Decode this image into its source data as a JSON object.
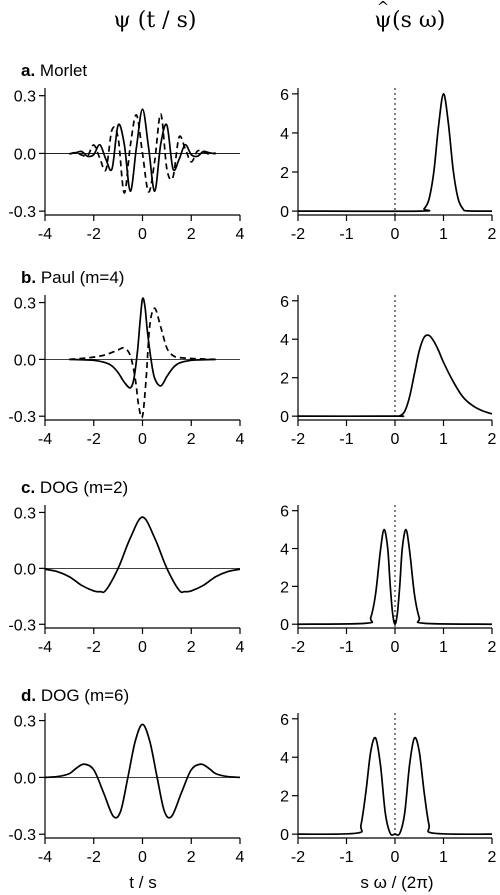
{
  "header": {
    "left": "ψ (t / s)",
    "right_symbol": "ψ",
    "right_hat": "^",
    "right_rest": " (s ω)"
  },
  "footer": {
    "left_xlabel": "t / s",
    "right_xlabel": "s ω / (2π)"
  },
  "chart_data": [
    {
      "type": "line",
      "panel": "a",
      "title_letter": "a.",
      "title_text": " Morlet",
      "xlim": [
        -4,
        4
      ],
      "ylim": [
        -0.32,
        0.34
      ],
      "xticks": [
        -4,
        -2,
        0,
        2,
        4
      ],
      "yticks": [
        -0.3,
        0.0,
        0.3
      ],
      "ytick_labels": [
        "-0.3",
        "0.0",
        "0.3"
      ],
      "zero_line": true,
      "series": [
        {
          "style": "solid",
          "x": [
            -3.0,
            -2.75,
            -2.5,
            -2.25,
            -2.0,
            -1.75,
            -1.5,
            -1.25,
            -1.0,
            -0.75,
            -0.5,
            -0.25,
            0.0,
            0.25,
            0.5,
            0.75,
            1.0,
            1.25,
            1.5,
            1.75,
            2.0,
            2.25,
            2.5,
            2.75,
            3.0
          ],
          "y": [
            -0.002,
            0.003,
            0.01,
            -0.015,
            -0.006,
            0.045,
            -0.031,
            -0.08,
            0.147,
            0.05,
            -0.196,
            0.03,
            0.23,
            0.03,
            -0.196,
            0.05,
            0.147,
            -0.08,
            -0.031,
            0.045,
            -0.006,
            -0.015,
            0.01,
            0.003,
            -0.002
          ]
        },
        {
          "style": "dashed",
          "x": [
            -3.0,
            -2.75,
            -2.5,
            -2.25,
            -2.0,
            -1.75,
            -1.5,
            -1.25,
            -1.0,
            -0.75,
            -0.5,
            -0.25,
            0.0,
            0.25,
            0.5,
            0.75,
            1.0,
            1.25,
            1.5,
            1.75,
            2.0,
            2.25,
            2.5,
            2.75,
            3.0
          ],
          "y": [
            -0.003,
            0.004,
            -0.008,
            -0.012,
            0.044,
            -0.025,
            -0.084,
            0.123,
            0.081,
            -0.205,
            0.04,
            0.2,
            0.0,
            -0.2,
            -0.04,
            0.205,
            -0.081,
            -0.123,
            0.084,
            0.025,
            -0.044,
            0.012,
            0.008,
            -0.004,
            0.003
          ]
        }
      ]
    },
    {
      "type": "line",
      "panel": "a-spectrum",
      "xlim": [
        -2,
        2
      ],
      "ylim": [
        -0.2,
        6.3
      ],
      "xticks": [
        -2,
        -1,
        0,
        1,
        2
      ],
      "yticks": [
        0,
        2,
        4,
        6
      ],
      "ytick_labels": [
        "0",
        "2",
        "4",
        "6"
      ],
      "vline_at": 0,
      "series": [
        {
          "style": "solid",
          "x": [
            -2.0,
            0.5,
            0.6,
            0.7,
            0.8,
            0.9,
            1.0,
            1.1,
            1.2,
            1.3,
            1.4,
            1.5,
            2.0
          ],
          "y": [
            0.0,
            0.0,
            0.12,
            0.6,
            2.0,
            4.4,
            6.0,
            4.5,
            2.1,
            0.65,
            0.12,
            0.01,
            0.0
          ]
        }
      ]
    },
    {
      "type": "line",
      "panel": "b",
      "title_letter": "b.",
      "title_text": " Paul (m=4)",
      "xlim": [
        -4,
        4
      ],
      "ylim": [
        -0.32,
        0.34
      ],
      "xticks": [
        -4,
        -2,
        0,
        2,
        4
      ],
      "yticks": [
        -0.3,
        0.0,
        0.3
      ],
      "ytick_labels": [
        "-0.3",
        "0.0",
        "0.3"
      ],
      "zero_line": true,
      "series": [
        {
          "style": "solid",
          "x": [
            -3.0,
            -2.5,
            -2.0,
            -1.5,
            -1.25,
            -1.0,
            -0.75,
            -0.5,
            -0.35,
            -0.2,
            -0.1,
            0.0,
            0.1,
            0.2,
            0.35,
            0.5,
            0.75,
            1.0,
            1.25,
            1.5,
            2.0,
            2.5,
            3.0
          ],
          "y": [
            0.0,
            -0.002,
            -0.005,
            -0.018,
            -0.035,
            -0.07,
            -0.12,
            -0.15,
            -0.1,
            0.05,
            0.2,
            0.32,
            0.28,
            0.15,
            0.0,
            -0.1,
            -0.14,
            -0.09,
            -0.045,
            -0.02,
            -0.005,
            -0.002,
            0.0
          ]
        },
        {
          "style": "dashed",
          "x": [
            -3.0,
            -2.5,
            -2.0,
            -1.5,
            -1.0,
            -0.75,
            -0.5,
            -0.3,
            -0.15,
            0.0,
            0.15,
            0.3,
            0.5,
            0.75,
            1.0,
            1.25,
            1.5,
            2.0,
            2.5,
            3.0
          ],
          "y": [
            0.0,
            0.005,
            0.012,
            0.025,
            0.05,
            0.06,
            0.02,
            -0.1,
            -0.25,
            -0.3,
            -0.1,
            0.18,
            0.27,
            0.17,
            0.06,
            0.02,
            0.01,
            0.005,
            0.002,
            0.0
          ]
        }
      ]
    },
    {
      "type": "line",
      "panel": "b-spectrum",
      "xlim": [
        -2,
        2
      ],
      "ylim": [
        -0.2,
        6.3
      ],
      "xticks": [
        -2,
        -1,
        0,
        1,
        2
      ],
      "yticks": [
        0,
        2,
        4,
        6
      ],
      "ytick_labels": [
        "0",
        "2",
        "4",
        "6"
      ],
      "vline_at": 0,
      "series": [
        {
          "style": "solid",
          "x": [
            -2.0,
            0.0,
            0.1,
            0.2,
            0.3,
            0.4,
            0.5,
            0.6,
            0.7,
            0.8,
            0.9,
            1.0,
            1.2,
            1.4,
            1.6,
            1.8,
            2.0
          ],
          "y": [
            0.0,
            0.0,
            0.02,
            0.25,
            1.0,
            2.2,
            3.4,
            4.1,
            4.2,
            3.9,
            3.4,
            2.8,
            1.8,
            1.0,
            0.55,
            0.28,
            0.12
          ]
        }
      ]
    },
    {
      "type": "line",
      "panel": "c",
      "title_letter": "c.",
      "title_text": " DOG (m=2)",
      "xlim": [
        -4,
        4
      ],
      "ylim": [
        -0.32,
        0.34
      ],
      "xticks": [
        -4,
        -2,
        0,
        2,
        4
      ],
      "yticks": [
        -0.3,
        0.0,
        0.3
      ],
      "ytick_labels": [
        "-0.3",
        "0.0",
        "0.3"
      ],
      "zero_line": true,
      "series": [
        {
          "style": "solid",
          "x": [
            -4.0,
            -3.5,
            -3.0,
            -2.5,
            -2.0,
            -1.73,
            -1.5,
            -1.0,
            -0.5,
            0.0,
            0.5,
            1.0,
            1.5,
            1.73,
            2.0,
            2.5,
            3.0,
            3.5,
            4.0
          ],
          "y": [
            -0.005,
            -0.017,
            -0.045,
            -0.091,
            -0.121,
            -0.125,
            -0.117,
            0.0,
            0.163,
            0.275,
            0.163,
            0.0,
            -0.117,
            -0.125,
            -0.121,
            -0.091,
            -0.045,
            -0.017,
            -0.005
          ]
        }
      ]
    },
    {
      "type": "line",
      "panel": "c-spectrum",
      "xlim": [
        -2,
        2
      ],
      "ylim": [
        -0.2,
        6.3
      ],
      "xticks": [
        -2,
        -1,
        0,
        1,
        2
      ],
      "yticks": [
        0,
        2,
        4,
        6
      ],
      "ytick_labels": [
        "0",
        "2",
        "4",
        "6"
      ],
      "vline_at": 0,
      "series": [
        {
          "style": "solid",
          "x": [
            -2.0,
            -0.6,
            -0.5,
            -0.4,
            -0.3,
            -0.225,
            -0.15,
            -0.1,
            -0.05,
            0.0,
            0.05,
            0.1,
            0.15,
            0.225,
            0.3,
            0.4,
            0.5,
            0.6,
            2.0
          ],
          "y": [
            0.0,
            0.05,
            0.35,
            1.6,
            3.9,
            5.0,
            4.0,
            2.1,
            0.6,
            0.0,
            0.6,
            2.1,
            4.0,
            5.0,
            3.9,
            1.6,
            0.35,
            0.05,
            0.0
          ]
        }
      ]
    },
    {
      "type": "line",
      "panel": "d",
      "title_letter": "d.",
      "title_text": " DOG (m=6)",
      "xlim": [
        -4,
        4
      ],
      "ylim": [
        -0.32,
        0.34
      ],
      "xticks": [
        -4,
        -2,
        0,
        2,
        4
      ],
      "yticks": [
        -0.3,
        0.0,
        0.3
      ],
      "ytick_labels": [
        "-0.3",
        "0.0",
        "0.3"
      ],
      "zero_line": true,
      "series": [
        {
          "style": "solid",
          "x": [
            -4.0,
            -3.5,
            -3.0,
            -2.75,
            -2.4,
            -2.0,
            -1.6,
            -1.2,
            -0.9,
            -0.6,
            -0.3,
            0.0,
            0.3,
            0.6,
            0.9,
            1.2,
            1.6,
            2.0,
            2.4,
            2.75,
            3.0,
            3.5,
            4.0
          ],
          "y": [
            0.0,
            0.004,
            0.02,
            0.045,
            0.07,
            0.04,
            -0.08,
            -0.205,
            -0.18,
            0.0,
            0.19,
            0.28,
            0.19,
            0.0,
            -0.18,
            -0.205,
            -0.08,
            0.04,
            0.07,
            0.045,
            0.02,
            0.004,
            0.0
          ]
        }
      ]
    },
    {
      "type": "line",
      "panel": "d-spectrum",
      "xlim": [
        -2,
        2
      ],
      "ylim": [
        -0.2,
        6.3
      ],
      "xticks": [
        -2,
        -1,
        0,
        1,
        2
      ],
      "yticks": [
        0,
        2,
        4,
        6
      ],
      "ytick_labels": [
        "0",
        "2",
        "4",
        "6"
      ],
      "vline_at": 0,
      "series": [
        {
          "style": "solid",
          "x": [
            -2.0,
            -0.8,
            -0.7,
            -0.6,
            -0.5,
            -0.4,
            -0.3,
            -0.2,
            -0.1,
            0.0,
            0.1,
            0.2,
            0.3,
            0.4,
            0.5,
            0.6,
            0.7,
            0.8,
            2.0
          ],
          "y": [
            0.0,
            0.05,
            0.5,
            2.2,
            4.3,
            5.0,
            3.6,
            1.1,
            0.05,
            0.0,
            0.05,
            1.1,
            3.6,
            5.0,
            4.3,
            2.2,
            0.5,
            0.05,
            0.0
          ]
        }
      ]
    }
  ]
}
